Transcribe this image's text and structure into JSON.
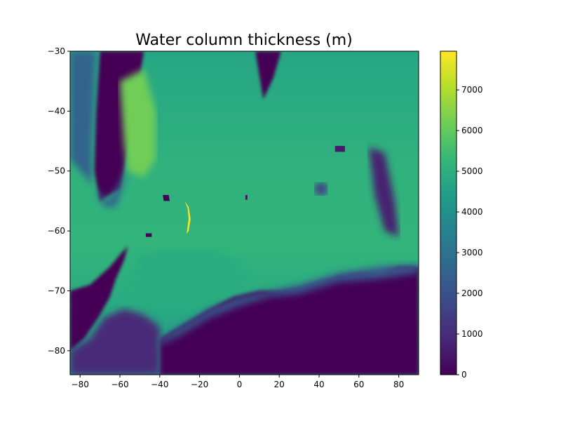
{
  "title": "Water column thickness (m)",
  "colormap": "viridis",
  "colors": {
    "viridis_stops": [
      "#440154",
      "#482878",
      "#3e4989",
      "#31688e",
      "#26828e",
      "#1f9e89",
      "#35b779",
      "#6ece58",
      "#b5de2b",
      "#fde725"
    ],
    "land": "#440154"
  },
  "chart_data": {
    "type": "heatmap",
    "title": "Water column thickness (m)",
    "xlabel": "",
    "ylabel": "",
    "xlim": [
      -85,
      90
    ],
    "ylim": [
      -84,
      -30
    ],
    "x_ticks": [
      {
        "value": -80,
        "label": "−80"
      },
      {
        "value": -60,
        "label": "−60"
      },
      {
        "value": -40,
        "label": "−40"
      },
      {
        "value": -20,
        "label": "−20"
      },
      {
        "value": 0,
        "label": "0"
      },
      {
        "value": 20,
        "label": "20"
      },
      {
        "value": 40,
        "label": "40"
      },
      {
        "value": 60,
        "label": "60"
      },
      {
        "value": 80,
        "label": "80"
      }
    ],
    "y_ticks": [
      {
        "value": -30,
        "label": "−30"
      },
      {
        "value": -40,
        "label": "−40"
      },
      {
        "value": -50,
        "label": "−50"
      },
      {
        "value": -60,
        "label": "−60"
      },
      {
        "value": -70,
        "label": "−70"
      },
      {
        "value": -80,
        "label": "−80"
      }
    ],
    "colorbar": {
      "min": 0,
      "max": 7950,
      "ticks": [
        {
          "value": 0,
          "label": "0"
        },
        {
          "value": 1000,
          "label": "1000"
        },
        {
          "value": 2000,
          "label": "2000"
        },
        {
          "value": 3000,
          "label": "3000"
        },
        {
          "value": 4000,
          "label": "4000"
        },
        {
          "value": 5000,
          "label": "5000"
        },
        {
          "value": 6000,
          "label": "6000"
        },
        {
          "value": 7000,
          "label": "7000"
        }
      ]
    },
    "regions": [
      {
        "name": "south-america-land",
        "value": 0,
        "points": [
          [
            -85,
            -30
          ],
          [
            -70,
            -30
          ],
          [
            -72,
            -40
          ],
          [
            -73,
            -50
          ],
          [
            -70,
            -55
          ],
          [
            -65,
            -54
          ],
          [
            -60,
            -53
          ],
          [
            -58,
            -50
          ],
          [
            -55,
            -45
          ],
          [
            -48,
            -30
          ],
          [
            -42,
            -30
          ]
        ]
      },
      {
        "name": "south-america-coast-shelf",
        "value": 2500,
        "points": [
          [
            -85,
            -30
          ],
          [
            -72,
            -30
          ],
          [
            -74,
            -45
          ],
          [
            -74,
            -52
          ],
          [
            -68,
            -56
          ],
          [
            -62,
            -56
          ],
          [
            -58,
            -52
          ],
          [
            -55,
            -47
          ],
          [
            -60,
            -52
          ],
          [
            -66,
            -55
          ],
          [
            -72,
            -53
          ],
          [
            -85,
            -48
          ]
        ]
      },
      {
        "name": "africa-land",
        "value": 0,
        "points": [
          [
            -3,
            -30
          ],
          [
            8,
            -30
          ],
          [
            12,
            -38
          ],
          [
            17,
            -34.5
          ],
          [
            21,
            -30
          ]
        ]
      },
      {
        "name": "antarctica-land",
        "value": 0,
        "points": [
          [
            -40,
            -84
          ],
          [
            -40,
            -78
          ],
          [
            -30,
            -76
          ],
          [
            -15,
            -73
          ],
          [
            -3,
            -71
          ],
          [
            10,
            -70
          ],
          [
            20,
            -70
          ],
          [
            30,
            -69.5
          ],
          [
            40,
            -68.5
          ],
          [
            50,
            -67.5
          ],
          [
            60,
            -67
          ],
          [
            70,
            -67
          ],
          [
            80,
            -66
          ],
          [
            90,
            -66
          ],
          [
            90,
            -84
          ]
        ]
      },
      {
        "name": "antarctic-peninsula",
        "value": 0,
        "points": [
          [
            -85,
            -70
          ],
          [
            -75,
            -69
          ],
          [
            -65,
            -66
          ],
          [
            -60,
            -64
          ],
          [
            -56,
            -62.5
          ],
          [
            -58,
            -65
          ],
          [
            -62,
            -68
          ],
          [
            -65,
            -71
          ],
          [
            -70,
            -74
          ],
          [
            -78,
            -78
          ],
          [
            -85,
            -80
          ]
        ]
      },
      {
        "name": "weddell-ice-shelf",
        "value": 900,
        "points": [
          [
            -85,
            -80
          ],
          [
            -75,
            -78
          ],
          [
            -68,
            -74.5
          ],
          [
            -58,
            -73
          ],
          [
            -48,
            -74
          ],
          [
            -40,
            -76
          ],
          [
            -40,
            -84
          ],
          [
            -85,
            -84
          ]
        ]
      },
      {
        "name": "antarctic-shelf-break",
        "value": 2200,
        "points": [
          [
            -40,
            -78
          ],
          [
            -30,
            -76
          ],
          [
            -15,
            -73
          ],
          [
            0,
            -71
          ],
          [
            15,
            -70
          ],
          [
            30,
            -69
          ],
          [
            50,
            -67
          ],
          [
            70,
            -66
          ],
          [
            90,
            -65.5
          ],
          [
            90,
            -67
          ],
          [
            70,
            -68
          ],
          [
            50,
            -68.5
          ],
          [
            30,
            -70.5
          ],
          [
            15,
            -71
          ],
          [
            0,
            -72.5
          ],
          [
            -15,
            -74.5
          ],
          [
            -30,
            -77.5
          ],
          [
            -40,
            -79
          ]
        ]
      },
      {
        "name": "argentine-basin",
        "value": 6200,
        "points": [
          [
            -60,
            -35
          ],
          [
            -48,
            -33
          ],
          [
            -42,
            -40
          ],
          [
            -42,
            -48
          ],
          [
            -48,
            -51
          ],
          [
            -56,
            -50
          ],
          [
            -58,
            -45
          ]
        ]
      },
      {
        "name": "weddell-abyssal",
        "value": 4900,
        "points": [
          [
            -50,
            -64
          ],
          [
            -35,
            -63
          ],
          [
            -15,
            -63
          ],
          [
            0,
            -65
          ],
          [
            5,
            -69
          ],
          [
            -10,
            -71
          ],
          [
            -30,
            -73
          ],
          [
            -45,
            -72
          ],
          [
            -55,
            -69
          ]
        ]
      },
      {
        "name": "south-sandwich-trench",
        "value": 7950,
        "points": [
          [
            -27.5,
            -55
          ],
          [
            -25.5,
            -56
          ],
          [
            -24.5,
            -58
          ],
          [
            -25.5,
            -60
          ],
          [
            -26.5,
            -60.5
          ],
          [
            -25.5,
            -58
          ],
          [
            -26,
            -56.2
          ]
        ]
      },
      {
        "name": "south-georgia",
        "value": 0,
        "points": [
          [
            -38.5,
            -54
          ],
          [
            -35.5,
            -54
          ],
          [
            -35,
            -55
          ],
          [
            -38,
            -55
          ]
        ]
      },
      {
        "name": "south-orkneys",
        "value": 0,
        "points": [
          [
            -47,
            -60.4
          ],
          [
            -44,
            -60.4
          ],
          [
            -44,
            -61
          ],
          [
            -47,
            -61
          ]
        ]
      },
      {
        "name": "bouvet",
        "value": 300,
        "points": [
          [
            3,
            -54
          ],
          [
            4,
            -54
          ],
          [
            4,
            -54.8
          ],
          [
            3,
            -54.8
          ]
        ]
      },
      {
        "name": "kerguelen-plateau",
        "value": 700,
        "points": [
          [
            65,
            -46
          ],
          [
            73,
            -47
          ],
          [
            78,
            -55
          ],
          [
            80,
            -61
          ],
          [
            73,
            -60
          ],
          [
            68,
            -54
          ]
        ]
      },
      {
        "name": "crozet",
        "value": 600,
        "points": [
          [
            48,
            -45.8
          ],
          [
            53,
            -45.8
          ],
          [
            53,
            -46.8
          ],
          [
            48,
            -46.8
          ]
        ]
      },
      {
        "name": "conrad-rise",
        "value": 1500,
        "points": [
          [
            38,
            -52
          ],
          [
            44,
            -52
          ],
          [
            44,
            -54
          ],
          [
            38,
            -54
          ]
        ]
      }
    ]
  },
  "meta": {
    "data_min": 0,
    "data_max": 7950
  }
}
